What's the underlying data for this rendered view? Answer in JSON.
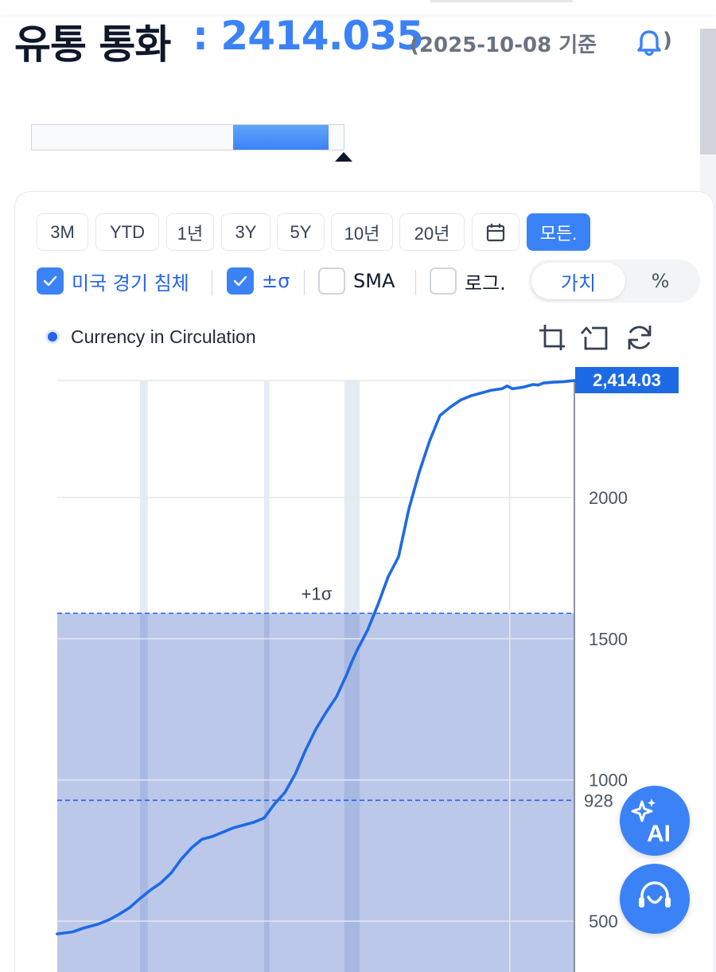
{
  "header": {
    "title": "유통 통화",
    "value": ": 2414.035",
    "date": "(2025-10-08 기준",
    "close_paren": ")"
  },
  "period_buttons": [
    "3M",
    "YTD",
    "1년",
    "3Y",
    "5Y",
    "10년",
    "20년",
    "모든."
  ],
  "active_period": "모든.",
  "options": {
    "recession": {
      "label": "미국 경기 침체",
      "checked": true
    },
    "sigma": {
      "label": "±σ",
      "checked": true
    },
    "sma": {
      "label": "SMA",
      "checked": false
    },
    "log": {
      "label": "로그.",
      "checked": false
    }
  },
  "view_toggle": {
    "value_label": "가치",
    "percent_label": "%",
    "active": "가치"
  },
  "chart_data": {
    "type": "line",
    "legend_position": "top-left",
    "colors": {
      "line": "#1d6ae5",
      "sigma_band": "#bcc8ea",
      "recession": "#e4ebf3",
      "accent": "#3b82f6"
    },
    "series": [
      {
        "name": "Currency in Circulation",
        "x": [
          0,
          3,
          5,
          8,
          10,
          12,
          14,
          16,
          18,
          20,
          22,
          24,
          26,
          28,
          30,
          32,
          34,
          36,
          38,
          40,
          42,
          44,
          46,
          48,
          50,
          52,
          54,
          56,
          57,
          58,
          60,
          62,
          64,
          66,
          68,
          70,
          72,
          74,
          76,
          78,
          80,
          82,
          84,
          86,
          87,
          88,
          90,
          92,
          93,
          94,
          96,
          98,
          99,
          100
        ],
        "values": [
          455,
          462,
          475,
          490,
          505,
          525,
          548,
          580,
          610,
          635,
          670,
          720,
          760,
          790,
          800,
          815,
          830,
          840,
          850,
          865,
          915,
          955,
          1020,
          1105,
          1180,
          1240,
          1295,
          1375,
          1420,
          1460,
          1530,
          1620,
          1720,
          1790,
          1960,
          2090,
          2200,
          2290,
          2320,
          2345,
          2360,
          2370,
          2380,
          2385,
          2395,
          2385,
          2390,
          2400,
          2398,
          2405,
          2408,
          2410,
          2412,
          2414.035
        ]
      }
    ],
    "last_value_label": "2,414.03",
    "y_ticks": [
      2000,
      1500,
      1000,
      500
    ],
    "sigma_lines": [
      {
        "label": "+1σ",
        "value": 1590
      },
      {
        "label": "928",
        "value": 928
      }
    ],
    "recession_bands": [
      [
        16,
        17.5
      ],
      [
        40,
        41
      ],
      [
        55.5,
        58.5
      ]
    ],
    "ylim": [
      320,
      2414.035
    ],
    "xlim": [
      0,
      100
    ]
  },
  "icons": {
    "bell": "bell-icon",
    "calendar": "calendar-icon",
    "zoom": "zoom-icon",
    "undo": "undo-icon",
    "refresh": "refresh-icon",
    "ai": "ai-sparkle-icon",
    "support": "support-headset-icon"
  },
  "fab": {
    "ai_label": "AI"
  }
}
